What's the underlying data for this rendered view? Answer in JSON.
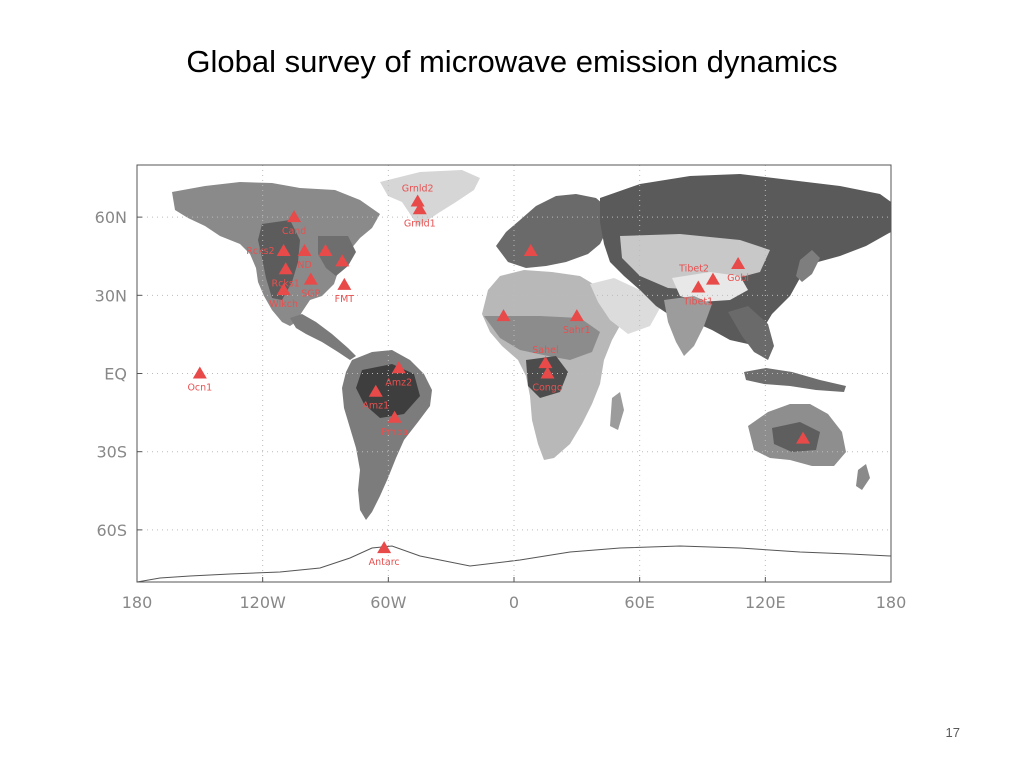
{
  "slide": {
    "title": "Global survey of microwave emission dynamics",
    "page_number": "17"
  },
  "colors": {
    "marker": "#e84a4a",
    "marker_label": "#e85050",
    "tick_label": "#888888",
    "ocean": "#ffffff",
    "land_light": "#e6e6e6",
    "land_mid": "#9a9a9a",
    "land_dark": "#4a4a4a",
    "frame": "#555555"
  },
  "map": {
    "projection": "equirectangular",
    "lon_range": [
      -180,
      180
    ],
    "lat_range": [
      -80,
      80
    ],
    "grid": "dotted",
    "x_ticks": [
      {
        "lon": -180,
        "label": "180"
      },
      {
        "lon": -120,
        "label": "120W"
      },
      {
        "lon": -60,
        "label": "60W"
      },
      {
        "lon": 0,
        "label": "0"
      },
      {
        "lon": 60,
        "label": "60E"
      },
      {
        "lon": 120,
        "label": "120E"
      },
      {
        "lon": 180,
        "label": "180"
      }
    ],
    "y_ticks": [
      {
        "lat": 60,
        "label": "60N"
      },
      {
        "lat": 30,
        "label": "30N"
      },
      {
        "lat": 0,
        "label": "EQ"
      },
      {
        "lat": -30,
        "label": "30S"
      },
      {
        "lat": -60,
        "label": "60S"
      }
    ],
    "sites": [
      {
        "name": "Grnld2",
        "lon": -46,
        "lat": 66,
        "label_pos": "above"
      },
      {
        "name": "Grnld1",
        "lon": -45,
        "lat": 63,
        "label_pos": "below"
      },
      {
        "name": "Cand",
        "lon": -105,
        "lat": 60,
        "label_pos": "below"
      },
      {
        "name": "Rcks2",
        "lon": -110,
        "lat": 47,
        "label_pos": "left"
      },
      {
        "name": "ND",
        "lon": -100,
        "lat": 47,
        "label_pos": "below"
      },
      {
        "name": "Rcks1",
        "lon": -109,
        "lat": 40,
        "label_pos": "below"
      },
      {
        "name": "SGP",
        "lon": -97,
        "lat": 36,
        "label_pos": "below"
      },
      {
        "name": "FMT",
        "lon": -81,
        "lat": 34,
        "label_pos": "below"
      },
      {
        "name": "Wlkch",
        "lon": -110,
        "lat": 32,
        "label_pos": "below"
      },
      {
        "name": "Ocn1",
        "lon": -150,
        "lat": 0,
        "label_pos": "below"
      },
      {
        "name": "Amz2",
        "lon": -55,
        "lat": 2,
        "label_pos": "below"
      },
      {
        "name": "Amz1",
        "lon": -66,
        "lat": -7,
        "label_pos": "below"
      },
      {
        "name": "Pmpa",
        "lon": -57,
        "lat": -17,
        "label_pos": "below"
      },
      {
        "name": "Antarc",
        "lon": -62,
        "lat": -67,
        "label_pos": "below"
      },
      {
        "name": "Sahr1",
        "lon": 30,
        "lat": 22,
        "label_pos": "below"
      },
      {
        "name": "Sahel",
        "lon": 15,
        "lat": 4,
        "label_pos": "above"
      },
      {
        "name": "Congo",
        "lon": 16,
        "lat": 0,
        "label_pos": "below"
      },
      {
        "name": "Tibet2",
        "lon": 95,
        "lat": 36,
        "label_pos": "above-left"
      },
      {
        "name": "Gobi",
        "lon": 107,
        "lat": 42,
        "label_pos": "below"
      },
      {
        "name": "Tibet1",
        "lon": 88,
        "lat": 33,
        "label_pos": "below"
      },
      {
        "name": "",
        "lon": -90,
        "lat": 47,
        "label_pos": "above"
      },
      {
        "name": "",
        "lon": -82,
        "lat": 43,
        "label_pos": "below"
      },
      {
        "name": "",
        "lon": 8,
        "lat": 47,
        "label_pos": "above"
      },
      {
        "name": "",
        "lon": -5,
        "lat": 22,
        "label_pos": "below"
      },
      {
        "name": "",
        "lon": 138,
        "lat": -25,
        "label_pos": "below"
      }
    ]
  }
}
